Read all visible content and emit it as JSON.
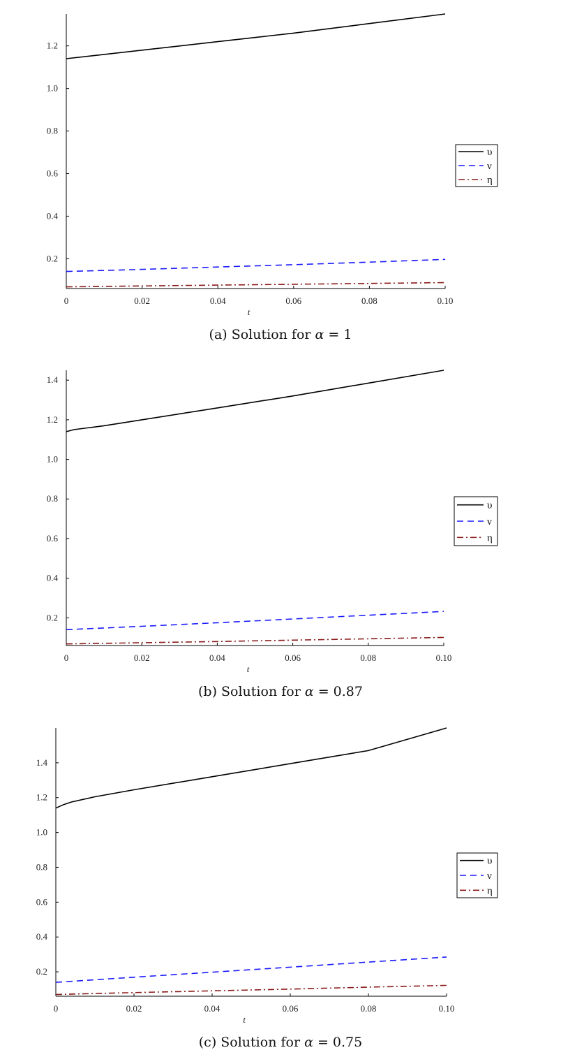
{
  "chart_data": [
    {
      "type": "line",
      "caption_prefix": "(a) Solution for ",
      "caption_symbol": "α",
      "caption_value": " = 1",
      "xlabel": "t",
      "ylabel": "",
      "xlim": [
        0,
        0.1
      ],
      "ylim": [
        0.06,
        1.35
      ],
      "x_ticks": [
        "0",
        "0.02",
        "0.04",
        "0.06",
        "0.08",
        "0.10"
      ],
      "y_ticks": [
        "0.2",
        "0.4",
        "0.6",
        "0.8",
        "1.0",
        "1.2"
      ],
      "legend_position": "right",
      "series": [
        {
          "name": "υ",
          "color": "#000000",
          "dash": "solid",
          "x": [
            0,
            0.02,
            0.04,
            0.06,
            0.08,
            0.1
          ],
          "y": [
            1.14,
            1.18,
            1.22,
            1.26,
            1.305,
            1.35
          ]
        },
        {
          "name": "ν",
          "color": "#1a1aff",
          "dash": "dashed",
          "x": [
            0,
            0.02,
            0.04,
            0.06,
            0.08,
            0.1
          ],
          "y": [
            0.14,
            0.15,
            0.161,
            0.172,
            0.184,
            0.197
          ]
        },
        {
          "name": "η",
          "color": "#8b1a1a",
          "dash": "dashdot",
          "x": [
            0,
            0.02,
            0.04,
            0.06,
            0.08,
            0.1
          ],
          "y": [
            0.068,
            0.072,
            0.076,
            0.08,
            0.084,
            0.088
          ]
        }
      ]
    },
    {
      "type": "line",
      "caption_prefix": "(b) Solution for ",
      "caption_symbol": "α",
      "caption_value": " = 0.87",
      "xlabel": "t",
      "ylabel": "",
      "xlim": [
        0,
        0.1
      ],
      "ylim": [
        0.06,
        1.45
      ],
      "x_ticks": [
        "0",
        "0.02",
        "0.04",
        "0.06",
        "0.08",
        "0.10"
      ],
      "y_ticks": [
        "0.2",
        "0.4",
        "0.6",
        "0.8",
        "1.0",
        "1.2",
        "1.4"
      ],
      "legend_position": "right",
      "series": [
        {
          "name": "υ",
          "color": "#000000",
          "dash": "solid",
          "x": [
            0,
            0.002,
            0.01,
            0.02,
            0.04,
            0.06,
            0.08,
            0.1
          ],
          "y": [
            1.14,
            1.15,
            1.17,
            1.2,
            1.26,
            1.32,
            1.385,
            1.45
          ]
        },
        {
          "name": "ν",
          "color": "#1a1aff",
          "dash": "dashed",
          "x": [
            0,
            0.02,
            0.04,
            0.06,
            0.08,
            0.1
          ],
          "y": [
            0.14,
            0.157,
            0.175,
            0.194,
            0.213,
            0.232
          ]
        },
        {
          "name": "η",
          "color": "#8b1a1a",
          "dash": "dashdot",
          "x": [
            0,
            0.02,
            0.04,
            0.06,
            0.08,
            0.1
          ],
          "y": [
            0.068,
            0.074,
            0.08,
            0.087,
            0.094,
            0.101
          ]
        }
      ]
    },
    {
      "type": "line",
      "caption_prefix": "(c) Solution for ",
      "caption_symbol": "α",
      "caption_value": " = 0.75",
      "xlabel": "t",
      "ylabel": "",
      "xlim": [
        0,
        0.1
      ],
      "ylim": [
        0.06,
        1.6
      ],
      "x_ticks": [
        "0",
        "0.02",
        "0.04",
        "0.06",
        "0.08",
        "0.10"
      ],
      "y_ticks": [
        "0.2",
        "0.4",
        "0.6",
        "0.8",
        "1.0",
        "1.2",
        "1.4"
      ],
      "legend_position": "right",
      "series": [
        {
          "name": "υ",
          "color": "#000000",
          "dash": "solid",
          "x": [
            0,
            0.002,
            0.004,
            0.01,
            0.02,
            0.04,
            0.06,
            0.08,
            0.1
          ],
          "y": [
            1.14,
            1.16,
            1.175,
            1.205,
            1.245,
            1.32,
            1.395,
            1.47,
            1.6
          ]
        },
        {
          "name": "ν",
          "color": "#1a1aff",
          "dash": "dashed",
          "x": [
            0,
            0.02,
            0.04,
            0.06,
            0.08,
            0.1
          ],
          "y": [
            0.14,
            0.169,
            0.198,
            0.227,
            0.256,
            0.285
          ]
        },
        {
          "name": "η",
          "color": "#8b1a1a",
          "dash": "dashdot",
          "x": [
            0,
            0.02,
            0.04,
            0.06,
            0.08,
            0.1
          ],
          "y": [
            0.07,
            0.081,
            0.091,
            0.101,
            0.112,
            0.122
          ]
        }
      ]
    }
  ]
}
